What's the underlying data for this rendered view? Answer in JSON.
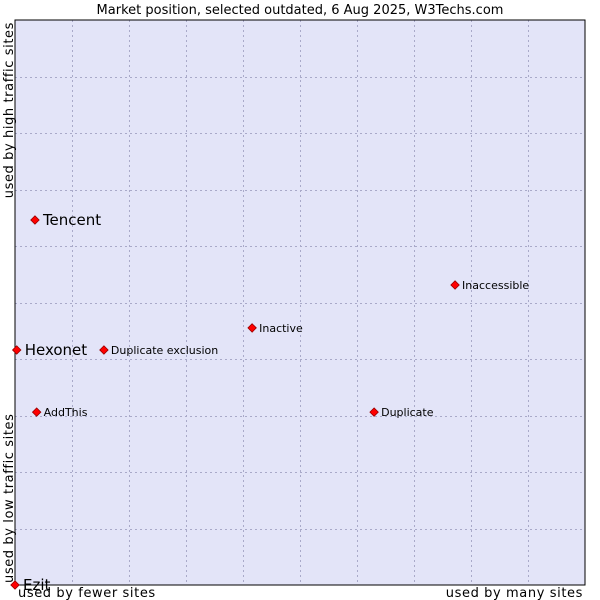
{
  "chart_data": {
    "type": "scatter",
    "title": "Market position, selected outdated, 6 Aug 2025, W3Techs.com",
    "xlabel_left": "used by fewer sites",
    "xlabel_right": "used by many sites",
    "ylabel_bottom": "used by low traffic sites",
    "ylabel_top": "used by high traffic sites",
    "xlim": [
      0,
      100
    ],
    "ylim": [
      0,
      100
    ],
    "grid": true,
    "colors": {
      "plot_background": "#e3e4f8",
      "grid": "#a9a9c9",
      "marker": "#ff0000",
      "marker_outline": "#990000"
    },
    "points": [
      {
        "name": "Tencent",
        "x": 3.5,
        "y": 64.6,
        "emphasis": "large"
      },
      {
        "name": "Hexonet",
        "x": 0.3,
        "y": 41.6,
        "emphasis": "large"
      },
      {
        "name": "Ezit",
        "x": 0.0,
        "y": 0.0,
        "emphasis": "large"
      },
      {
        "name": "Inaccessible",
        "x": 77.2,
        "y": 53.1,
        "emphasis": "small"
      },
      {
        "name": "Inactive",
        "x": 41.6,
        "y": 45.5,
        "emphasis": "small"
      },
      {
        "name": "Duplicate exclusion",
        "x": 15.6,
        "y": 41.6,
        "emphasis": "small"
      },
      {
        "name": "AddThis",
        "x": 3.8,
        "y": 30.6,
        "emphasis": "small"
      },
      {
        "name": "Duplicate",
        "x": 63.0,
        "y": 30.6,
        "emphasis": "small"
      }
    ]
  }
}
